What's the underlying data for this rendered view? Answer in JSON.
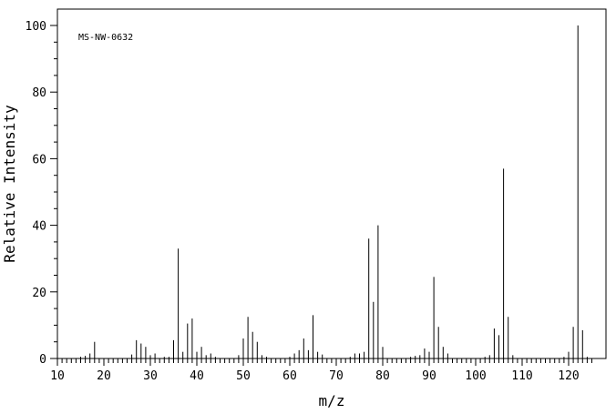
{
  "chart_data": {
    "type": "bar",
    "title": "",
    "spectrum_id": "MS-NW-0632",
    "xlabel": "m/z",
    "ylabel": "Relative Intensity",
    "xlim": [
      10,
      127
    ],
    "ylim": [
      0,
      100
    ],
    "x_major_ticks": [
      10,
      20,
      30,
      40,
      50,
      60,
      70,
      80,
      90,
      100,
      110,
      120
    ],
    "y_major_ticks": [
      0,
      20,
      40,
      60,
      80,
      100
    ],
    "x_tick_labels": [
      "10",
      "20",
      "30",
      "40",
      "50",
      "60",
      "70",
      "80",
      "90",
      "100",
      "110",
      "120"
    ],
    "y_tick_labels": [
      "0",
      "20",
      "40",
      "60",
      "80",
      "100"
    ],
    "grid": false,
    "peaks": [
      {
        "x": 15,
        "y": 0.5
      },
      {
        "x": 16,
        "y": 0.8
      },
      {
        "x": 17,
        "y": 1.5
      },
      {
        "x": 18,
        "y": 5
      },
      {
        "x": 26,
        "y": 1.2
      },
      {
        "x": 27,
        "y": 5.5
      },
      {
        "x": 28,
        "y": 4.5
      },
      {
        "x": 29,
        "y": 3.5
      },
      {
        "x": 30,
        "y": 1
      },
      {
        "x": 31,
        "y": 1.5
      },
      {
        "x": 33,
        "y": 0.5
      },
      {
        "x": 34,
        "y": 0.5
      },
      {
        "x": 35,
        "y": 5.5
      },
      {
        "x": 36,
        "y": 33
      },
      {
        "x": 37,
        "y": 2
      },
      {
        "x": 38,
        "y": 10.5
      },
      {
        "x": 39,
        "y": 12
      },
      {
        "x": 40,
        "y": 2
      },
      {
        "x": 41,
        "y": 3.5
      },
      {
        "x": 42,
        "y": 1
      },
      {
        "x": 43,
        "y": 1.5
      },
      {
        "x": 44,
        "y": 0.5
      },
      {
        "x": 49,
        "y": 1
      },
      {
        "x": 50,
        "y": 6
      },
      {
        "x": 51,
        "y": 12.5
      },
      {
        "x": 52,
        "y": 8
      },
      {
        "x": 53,
        "y": 5
      },
      {
        "x": 54,
        "y": 1
      },
      {
        "x": 55,
        "y": 0.5
      },
      {
        "x": 60,
        "y": 0.5
      },
      {
        "x": 61,
        "y": 1.5
      },
      {
        "x": 62,
        "y": 2.5
      },
      {
        "x": 63,
        "y": 6
      },
      {
        "x": 64,
        "y": 2.5
      },
      {
        "x": 65,
        "y": 13
      },
      {
        "x": 66,
        "y": 2
      },
      {
        "x": 67,
        "y": 1.2
      },
      {
        "x": 73,
        "y": 0.5
      },
      {
        "x": 74,
        "y": 1.5
      },
      {
        "x": 75,
        "y": 1.5
      },
      {
        "x": 76,
        "y": 2
      },
      {
        "x": 77,
        "y": 36
      },
      {
        "x": 78,
        "y": 17
      },
      {
        "x": 79,
        "y": 40
      },
      {
        "x": 80,
        "y": 3.5
      },
      {
        "x": 86,
        "y": 0.5
      },
      {
        "x": 87,
        "y": 0.8
      },
      {
        "x": 88,
        "y": 1
      },
      {
        "x": 89,
        "y": 3
      },
      {
        "x": 90,
        "y": 2
      },
      {
        "x": 91,
        "y": 24.5
      },
      {
        "x": 92,
        "y": 9.5
      },
      {
        "x": 93,
        "y": 3.5
      },
      {
        "x": 94,
        "y": 1.5
      },
      {
        "x": 102,
        "y": 0.5
      },
      {
        "x": 103,
        "y": 1
      },
      {
        "x": 104,
        "y": 9
      },
      {
        "x": 105,
        "y": 7
      },
      {
        "x": 106,
        "y": 57
      },
      {
        "x": 107,
        "y": 12.5
      },
      {
        "x": 108,
        "y": 1
      },
      {
        "x": 119,
        "y": 0.5
      },
      {
        "x": 120,
        "y": 2
      },
      {
        "x": 121,
        "y": 9.5
      },
      {
        "x": 122,
        "y": 100
      },
      {
        "x": 123,
        "y": 8.5
      },
      {
        "x": 124,
        "y": 0.5
      }
    ]
  }
}
